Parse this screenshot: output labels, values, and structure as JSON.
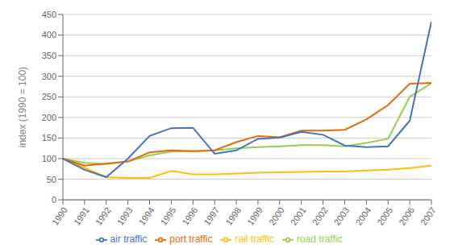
{
  "chart_data": {
    "type": "line",
    "x": [
      1990,
      1991,
      1992,
      1993,
      1994,
      1995,
      1996,
      1997,
      1998,
      1999,
      2000,
      2001,
      2002,
      2003,
      2004,
      2005,
      2006,
      2007
    ],
    "series": [
      {
        "name": "road traffic",
        "color": "#92d050",
        "values": [
          100,
          90,
          87,
          93,
          108,
          117,
          118,
          120,
          125,
          128,
          130,
          133,
          133,
          130,
          138,
          148,
          250,
          283
        ]
      },
      {
        "name": "rail traffic",
        "color": "#ffc000",
        "values": [
          100,
          78,
          55,
          53,
          53,
          70,
          62,
          62,
          64,
          66,
          67,
          68,
          69,
          69,
          71,
          73,
          77,
          83
        ]
      },
      {
        "name": "port traffic",
        "color": "#e36c09",
        "values": [
          100,
          83,
          88,
          93,
          115,
          120,
          118,
          120,
          140,
          155,
          152,
          168,
          168,
          170,
          195,
          230,
          282,
          284
        ]
      },
      {
        "name": "air traffic",
        "color": "#4472c4",
        "values": [
          100,
          73,
          55,
          100,
          155,
          174,
          175,
          112,
          120,
          148,
          151,
          165,
          158,
          132,
          128,
          130,
          192,
          433
        ]
      }
    ],
    "ylabel": "index (1990 = 100)",
    "xlim": [
      1990,
      2007
    ],
    "xticks": [
      1990,
      1991,
      1992,
      1993,
      1994,
      1995,
      1996,
      1997,
      1998,
      1999,
      2000,
      2001,
      2002,
      2003,
      2004,
      2005,
      2006,
      2007
    ],
    "ylim": [
      0,
      450
    ],
    "yticks": [
      0,
      50,
      100,
      150,
      200,
      250,
      300,
      350,
      400,
      450
    ],
    "grid": true,
    "legend": "bottom"
  }
}
